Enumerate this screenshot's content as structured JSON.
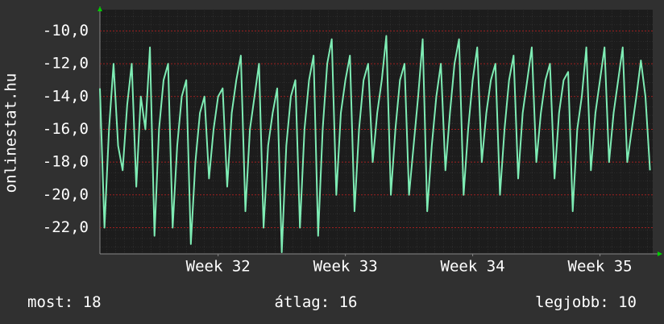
{
  "chart_data": {
    "type": "line",
    "ylabel": "onlinestat.hu",
    "x": [
      0,
      0.25,
      0.5,
      0.75,
      1,
      1.25,
      1.5,
      1.75,
      2,
      2.25,
      2.5,
      2.75,
      3,
      3.25,
      3.5,
      3.75,
      4,
      4.25,
      4.5,
      4.75,
      5,
      5.25,
      5.5,
      5.75,
      6,
      6.25,
      6.5,
      6.75,
      7,
      7.25,
      7.5,
      7.75,
      8,
      8.25,
      8.5,
      8.75,
      9,
      9.25,
      9.5,
      9.75,
      10,
      10.25,
      10.5,
      10.75,
      11,
      11.25,
      11.5,
      11.75,
      12,
      12.25,
      12.5,
      12.75,
      13,
      13.25,
      13.5,
      13.75,
      14,
      14.25,
      14.5,
      14.75,
      15,
      15.25,
      15.5,
      15.75,
      16,
      16.25,
      16.5,
      16.75,
      17,
      17.25,
      17.5,
      17.75,
      18,
      18.25,
      18.5,
      18.75,
      19,
      19.25,
      19.5,
      19.75,
      20,
      20.25,
      20.5,
      20.75,
      21,
      21.25,
      21.5,
      21.75,
      22,
      22.25,
      22.5,
      22.75,
      23,
      23.25,
      23.5,
      23.75,
      24,
      24.25,
      24.5,
      24.75,
      25,
      25.25,
      25.5,
      25.75,
      26,
      26.25,
      26.5,
      26.75,
      27,
      27.25,
      27.5,
      27.75,
      28,
      28.25,
      28.5,
      28.75,
      29,
      29.25,
      29.5,
      29.75,
      30,
      30.25
    ],
    "series": [
      {
        "color": "#7eecb4",
        "values": [
          -13.5,
          -22,
          -16,
          -12,
          -17,
          -18.5,
          -14.5,
          -12,
          -19.5,
          -14,
          -16,
          -11,
          -22.5,
          -16,
          -13,
          -12,
          -22,
          -17,
          -14,
          -13,
          -23,
          -18,
          -15,
          -14,
          -19,
          -16,
          -14,
          -13.5,
          -19.5,
          -15,
          -13,
          -11.5,
          -21,
          -16,
          -14,
          -12,
          -22,
          -17,
          -15,
          -13.5,
          -23.5,
          -17,
          -14,
          -13,
          -22,
          -16,
          -13,
          -11.5,
          -22.5,
          -16,
          -12,
          -10.5,
          -20,
          -15,
          -13,
          -11.5,
          -21,
          -16,
          -13,
          -12,
          -18,
          -15,
          -13,
          -10.3,
          -20,
          -16,
          -13,
          -12,
          -20,
          -17,
          -14,
          -10.5,
          -21,
          -17,
          -14,
          -12,
          -18.5,
          -15,
          -12,
          -10.5,
          -20,
          -16,
          -13,
          -11,
          -18,
          -15,
          -13,
          -12,
          -20,
          -16,
          -13,
          -11.5,
          -19,
          -15,
          -13,
          -11,
          -18,
          -15,
          -13,
          -12,
          -19,
          -15,
          -13,
          -12.5,
          -21,
          -16,
          -14,
          -11,
          -18.5,
          -15,
          -13,
          -11,
          -18,
          -15,
          -13,
          -11,
          -18,
          -16,
          -14,
          -11.8,
          -14,
          -18.5
        ]
      }
    ],
    "xlim": [
      0,
      30.4
    ],
    "xticks": [
      {
        "value": 6.5,
        "label": "Week 32"
      },
      {
        "value": 13.5,
        "label": "Week 33"
      },
      {
        "value": 20.5,
        "label": "Week 34"
      },
      {
        "value": 27.5,
        "label": "Week 35"
      }
    ],
    "ylim": [
      -23.6,
      -8.7
    ],
    "yticks": [
      {
        "value": -22,
        "label": "-22,0"
      },
      {
        "value": -20,
        "label": "-20,0"
      },
      {
        "value": -18,
        "label": "-18,0"
      },
      {
        "value": -16,
        "label": "-16,0"
      },
      {
        "value": -14,
        "label": "-14,0"
      },
      {
        "value": -12,
        "label": "-12,0"
      },
      {
        "value": -10,
        "label": "-10,0"
      }
    ],
    "grid": true,
    "stats": [
      {
        "label": "most:",
        "value": 18
      },
      {
        "label": "átlag:",
        "value": 16
      },
      {
        "label": "legjobb:",
        "value": 10
      }
    ]
  }
}
